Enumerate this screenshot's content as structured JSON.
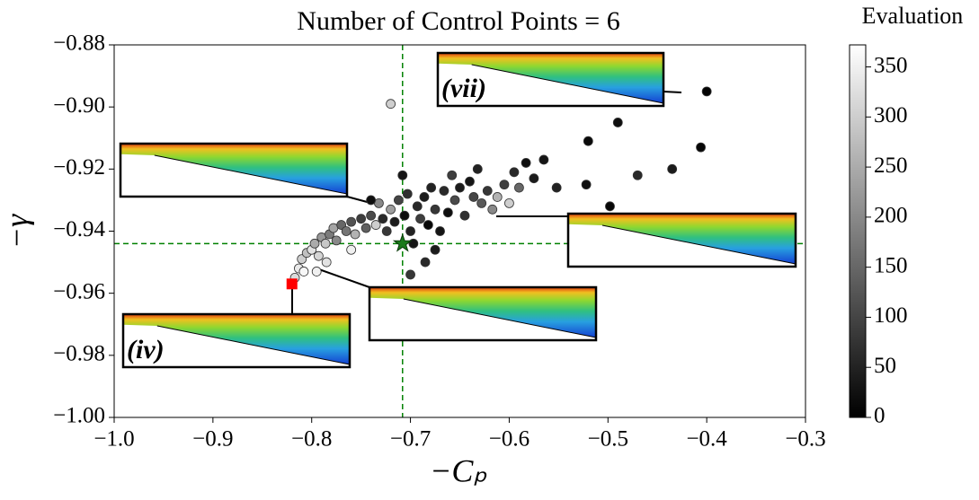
{
  "chart_data": {
    "type": "scatter",
    "title": "Number of Control Points = 6",
    "x_label": "−Cₚ",
    "y_label": "−γ",
    "colorbar_label": "Evaluation",
    "xlim": [
      -1.0,
      -0.3
    ],
    "ylim": [
      -1.0,
      -0.88
    ],
    "xticks": [
      {
        "value": -1.0,
        "label": "−1.0"
      },
      {
        "value": -0.9,
        "label": "−0.9"
      },
      {
        "value": -0.8,
        "label": "−0.8"
      },
      {
        "value": -0.7,
        "label": "−0.7"
      },
      {
        "value": -0.6,
        "label": "−0.6"
      },
      {
        "value": -0.5,
        "label": "−0.5"
      },
      {
        "value": -0.4,
        "label": "−0.4"
      },
      {
        "value": -0.3,
        "label": "−0.3"
      }
    ],
    "yticks": [
      {
        "value": -1.0,
        "label": "−1.00"
      },
      {
        "value": -0.98,
        "label": "−0.98"
      },
      {
        "value": -0.96,
        "label": "−0.96"
      },
      {
        "value": -0.94,
        "label": "−0.94"
      },
      {
        "value": -0.92,
        "label": "−0.92"
      },
      {
        "value": -0.9,
        "label": "−0.90"
      },
      {
        "value": -0.88,
        "label": "−0.88"
      }
    ],
    "clim": [
      0,
      372
    ],
    "cticks": [
      0,
      50,
      100,
      150,
      200,
      250,
      300,
      350
    ],
    "colormap": [
      "#000000",
      "#ffffff"
    ],
    "x": [
      -0.817,
      -0.813,
      -0.81,
      -0.808,
      -0.805,
      -0.8,
      -0.797,
      -0.793,
      -0.79,
      -0.786,
      -0.782,
      -0.778,
      -0.775,
      -0.77,
      -0.765,
      -0.76,
      -0.756,
      -0.75,
      -0.745,
      -0.74,
      -0.735,
      -0.732,
      -0.728,
      -0.724,
      -0.72,
      -0.716,
      -0.712,
      -0.706,
      -0.703,
      -0.7,
      -0.697,
      -0.693,
      -0.69,
      -0.686,
      -0.682,
      -0.679,
      -0.675,
      -0.67,
      -0.666,
      -0.662,
      -0.658,
      -0.655,
      -0.65,
      -0.645,
      -0.64,
      -0.636,
      -0.632,
      -0.628,
      -0.622,
      -0.617,
      -0.612,
      -0.605,
      -0.6,
      -0.595,
      -0.59,
      -0.583,
      -0.575,
      -0.565,
      -0.552,
      -0.52,
      -0.522,
      -0.498,
      -0.49,
      -0.47,
      -0.435,
      -0.406,
      -0.4,
      -0.72,
      -0.685,
      -0.7,
      -0.675,
      -0.708,
      -0.74,
      -0.76,
      -0.785,
      -0.795
    ],
    "y": [
      -0.955,
      -0.952,
      -0.949,
      -0.953,
      -0.947,
      -0.946,
      -0.944,
      -0.948,
      -0.942,
      -0.944,
      -0.941,
      -0.939,
      -0.943,
      -0.938,
      -0.94,
      -0.937,
      -0.941,
      -0.936,
      -0.939,
      -0.935,
      -0.938,
      -0.931,
      -0.936,
      -0.94,
      -0.933,
      -0.937,
      -0.93,
      -0.935,
      -0.928,
      -0.94,
      -0.944,
      -0.932,
      -0.936,
      -0.929,
      -0.938,
      -0.926,
      -0.933,
      -0.94,
      -0.927,
      -0.934,
      -0.922,
      -0.93,
      -0.926,
      -0.935,
      -0.924,
      -0.929,
      -0.92,
      -0.931,
      -0.927,
      -0.933,
      -0.929,
      -0.925,
      -0.931,
      -0.921,
      -0.926,
      -0.918,
      -0.923,
      -0.917,
      -0.926,
      -0.911,
      -0.925,
      -0.932,
      -0.905,
      -0.922,
      -0.92,
      -0.913,
      -0.895,
      -0.899,
      -0.95,
      -0.954,
      -0.946,
      -0.922,
      -0.93,
      -0.946,
      -0.95,
      -0.953
    ],
    "evaluation": [
      320,
      340,
      300,
      360,
      280,
      330,
      250,
      310,
      220,
      290,
      180,
      240,
      200,
      150,
      170,
      120,
      260,
      90,
      140,
      110,
      300,
      200,
      60,
      80,
      230,
      40,
      100,
      20,
      70,
      50,
      30,
      60,
      90,
      40,
      10,
      50,
      80,
      30,
      60,
      20,
      90,
      110,
      40,
      70,
      30,
      100,
      50,
      130,
      80,
      200,
      260,
      90,
      300,
      60,
      150,
      20,
      40,
      30,
      50,
      15,
      20,
      10,
      20,
      60,
      40,
      10,
      5,
      300,
      60,
      80,
      40,
      30,
      20,
      350,
      330,
      350
    ],
    "reference_x": -0.708,
    "reference_y": -0.944,
    "reference_color": "#008000",
    "star_point": [
      -0.708,
      -0.944
    ],
    "star_color": "#1a7a1a",
    "square_point": [
      -0.82,
      -0.957
    ],
    "square_color": "#ff0000",
    "inset_labels": [
      "(vii)",
      "(iv)"
    ]
  }
}
